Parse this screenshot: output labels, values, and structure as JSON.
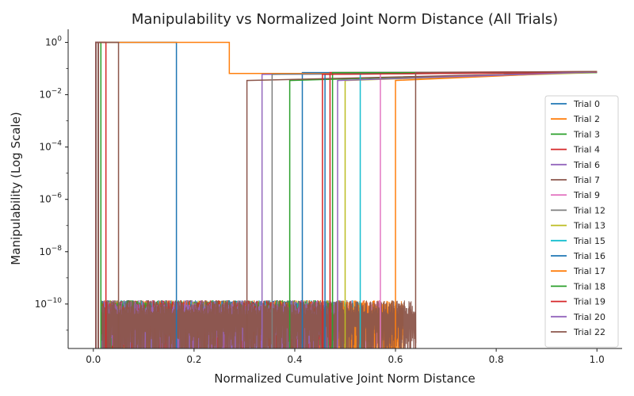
{
  "chart_data": {
    "type": "line",
    "title": "Manipulability vs Normalized Joint Norm Distance (All Trials)",
    "xlabel": "Normalized Cumulative Joint Norm Distance",
    "ylabel": "Manipulability (Log Scale)",
    "xlim": [
      -0.05,
      1.05
    ],
    "ylim_log10": [
      -11.7,
      0.5
    ],
    "yscale": "log",
    "x_ticks": [
      0.0,
      0.2,
      0.4,
      0.6,
      0.8,
      1.0
    ],
    "x_tick_labels": [
      "0.0",
      "0.2",
      "0.4",
      "0.6",
      "0.8",
      "1.0"
    ],
    "y_ticks_log10": [
      0,
      -2,
      -4,
      -6,
      -8,
      -10
    ],
    "y_tick_labels": [
      {
        "base": "10",
        "exp": "0"
      },
      {
        "base": "10",
        "exp": "−2"
      },
      {
        "base": "10",
        "exp": "−4"
      },
      {
        "base": "10",
        "exp": "−6"
      },
      {
        "base": "10",
        "exp": "−8"
      },
      {
        "base": "10",
        "exp": "−10"
      }
    ],
    "legend_position": "right",
    "noise_floor": 3e-11,
    "series": [
      {
        "name": "Trial 0",
        "color": "#1f77b4",
        "x_start": 0.005,
        "x_high_end": 0.165,
        "x_drop": 0.415,
        "final_value": 0.07
      },
      {
        "name": "Trial 2",
        "color": "#ff7f0e",
        "x_start": 0.01,
        "x_high_end": 0.27,
        "x_drop": 0.615,
        "final_value": 0.07
      },
      {
        "name": "Trial 3",
        "color": "#2ca02c",
        "x_start": 0.005,
        "x_high_end": 0.015,
        "x_drop": 0.39,
        "final_value": 0.07
      },
      {
        "name": "Trial 4",
        "color": "#d62728",
        "x_start": 0.01,
        "x_high_end": 0.025,
        "x_drop": 0.47,
        "final_value": 0.07
      },
      {
        "name": "Trial 6",
        "color": "#9467bd",
        "x_start": 0.005,
        "x_high_end": 0.01,
        "x_drop": 0.335,
        "final_value": 0.07
      },
      {
        "name": "Trial 7",
        "color": "#8c564b",
        "x_start": 0.01,
        "x_high_end": 0.05,
        "x_drop": 0.305,
        "final_value": 0.07
      },
      {
        "name": "Trial 9",
        "color": "#e377c2",
        "x_start": 0.005,
        "x_high_end": 0.01,
        "x_drop": 0.57,
        "final_value": 0.07
      },
      {
        "name": "Trial 12",
        "color": "#7f7f7f",
        "x_start": 0.005,
        "x_high_end": 0.01,
        "x_drop": 0.355,
        "final_value": 0.07
      },
      {
        "name": "Trial 13",
        "color": "#bcbd22",
        "x_start": 0.005,
        "x_high_end": 0.01,
        "x_drop": 0.5,
        "final_value": 0.07
      },
      {
        "name": "Trial 15",
        "color": "#17becf",
        "x_start": 0.005,
        "x_high_end": 0.01,
        "x_drop": 0.53,
        "final_value": 0.07
      },
      {
        "name": "Trial 16",
        "color": "#1f77b4",
        "x_start": 0.005,
        "x_high_end": 0.01,
        "x_drop": 0.46,
        "final_value": 0.07
      },
      {
        "name": "Trial 17",
        "color": "#ff7f0e",
        "x_start": 0.005,
        "x_high_end": 0.01,
        "x_drop": 0.6,
        "final_value": 0.07
      },
      {
        "name": "Trial 18",
        "color": "#2ca02c",
        "x_start": 0.005,
        "x_high_end": 0.01,
        "x_drop": 0.475,
        "final_value": 0.07
      },
      {
        "name": "Trial 19",
        "color": "#d62728",
        "x_start": 0.005,
        "x_high_end": 0.01,
        "x_drop": 0.455,
        "final_value": 0.07
      },
      {
        "name": "Trial 20",
        "color": "#9467bd",
        "x_start": 0.005,
        "x_high_end": 0.01,
        "x_drop": 0.485,
        "final_value": 0.07
      },
      {
        "name": "Trial 22",
        "color": "#8c564b",
        "x_start": 0.005,
        "x_high_end": 0.01,
        "x_drop": 0.64,
        "final_value": 0.07
      }
    ]
  }
}
